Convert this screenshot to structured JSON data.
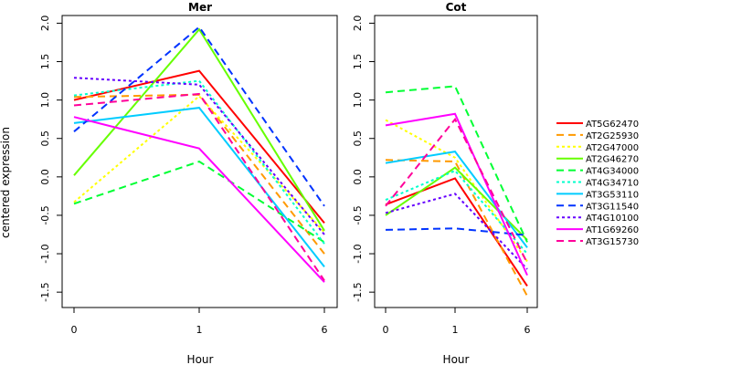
{
  "chart_data": {
    "type": "line",
    "ylabel": "centered expression",
    "xlabel": "Hour",
    "x": [
      "0",
      "1",
      "6"
    ],
    "ylim": [
      -1.7,
      2.1
    ],
    "yticks": [
      "-1.5",
      "-1.0",
      "-0.5",
      "0.0",
      "0.5",
      "1.0",
      "1.5",
      "2.0"
    ],
    "yticks_values": [
      -1.5,
      -1.0,
      -0.5,
      0.0,
      0.5,
      1.0,
      1.5,
      2.0
    ],
    "legend_position": "right",
    "grid": false,
    "series_styles": [
      {
        "name": "AT5G62470",
        "color": "#ff0000",
        "dash": "solid"
      },
      {
        "name": "AT2G25930",
        "color": "#ff9900",
        "dash": "dashed"
      },
      {
        "name": "AT2G47000",
        "color": "#ffff00",
        "dash": "dotted"
      },
      {
        "name": "AT2G46270",
        "color": "#66ff00",
        "dash": "solid"
      },
      {
        "name": "AT4G34000",
        "color": "#00ff33",
        "dash": "dashed"
      },
      {
        "name": "AT4G34710",
        "color": "#00ffcc",
        "dash": "dotted"
      },
      {
        "name": "AT3G53110",
        "color": "#00ccff",
        "dash": "solid"
      },
      {
        "name": "AT3G11540",
        "color": "#0033ff",
        "dash": "dashed"
      },
      {
        "name": "AT4G10100",
        "color": "#6600ff",
        "dash": "dotted"
      },
      {
        "name": "AT1G69260",
        "color": "#ff00ff",
        "dash": "solid"
      },
      {
        "name": "AT3G15730",
        "color": "#ff0099",
        "dash": "dashed"
      }
    ],
    "panels": [
      {
        "title": "Mer",
        "series": [
          {
            "name": "AT5G62470",
            "values": [
              1.0,
              1.38,
              -0.6
            ]
          },
          {
            "name": "AT2G25930",
            "values": [
              1.04,
              1.07,
              -1.0
            ]
          },
          {
            "name": "AT2G47000",
            "values": [
              -0.33,
              1.05,
              -0.72
            ]
          },
          {
            "name": "AT2G46270",
            "values": [
              0.02,
              1.92,
              -0.7
            ]
          },
          {
            "name": "AT4G34000",
            "values": [
              -0.35,
              0.2,
              -0.85
            ]
          },
          {
            "name": "AT4G34710",
            "values": [
              1.06,
              1.25,
              -0.87
            ]
          },
          {
            "name": "AT3G53110",
            "values": [
              0.7,
              0.9,
              -1.17
            ]
          },
          {
            "name": "AT3G11540",
            "values": [
              0.59,
              1.95,
              -0.38
            ]
          },
          {
            "name": "AT4G10100",
            "values": [
              1.29,
              1.2,
              -0.75
            ]
          },
          {
            "name": "AT1G69260",
            "values": [
              0.78,
              0.37,
              -1.37
            ]
          },
          {
            "name": "AT3G15730",
            "values": [
              0.93,
              1.08,
              -1.35
            ]
          }
        ]
      },
      {
        "title": "Cot",
        "series": [
          {
            "name": "AT5G62470",
            "values": [
              -0.36,
              -0.02,
              -1.42
            ]
          },
          {
            "name": "AT2G25930",
            "values": [
              0.22,
              0.2,
              -1.55
            ]
          },
          {
            "name": "AT2G47000",
            "values": [
              0.74,
              0.25,
              -1.1
            ]
          },
          {
            "name": "AT2G46270",
            "values": [
              -0.5,
              0.12,
              -0.82
            ]
          },
          {
            "name": "AT4G34000",
            "values": [
              1.1,
              1.18,
              -0.85
            ]
          },
          {
            "name": "AT4G34710",
            "values": [
              -0.3,
              0.08,
              -1.0
            ]
          },
          {
            "name": "AT3G53110",
            "values": [
              0.18,
              0.33,
              -0.92
            ]
          },
          {
            "name": "AT3G11540",
            "values": [
              -0.69,
              -0.67,
              -0.76
            ]
          },
          {
            "name": "AT4G10100",
            "values": [
              -0.47,
              -0.22,
              -1.2
            ]
          },
          {
            "name": "AT1G69260",
            "values": [
              0.67,
              0.82,
              -1.28
            ]
          },
          {
            "name": "AT3G15730",
            "values": [
              -0.38,
              0.75,
              -1.12
            ]
          }
        ]
      }
    ]
  }
}
